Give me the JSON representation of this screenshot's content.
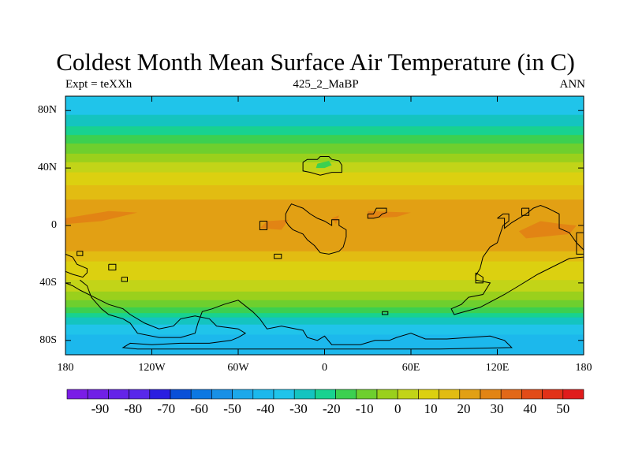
{
  "title": "Coldest Month Mean Surface Air Temperature (in C)",
  "subtitle": {
    "left": "Expt = teXXh",
    "center": "425_2_MaBP",
    "right": "ANN"
  },
  "axes": {
    "y_ticks": [
      {
        "lat": 80,
        "label": "80N"
      },
      {
        "lat": 40,
        "label": "40N"
      },
      {
        "lat": 0,
        "label": "0"
      },
      {
        "lat": -40,
        "label": "40S"
      },
      {
        "lat": -80,
        "label": "80S"
      }
    ],
    "x_ticks": [
      {
        "lon": -180,
        "label": "180"
      },
      {
        "lon": -120,
        "label": "120W"
      },
      {
        "lon": -60,
        "label": "60W"
      },
      {
        "lon": 0,
        "label": "0"
      },
      {
        "lon": 60,
        "label": "60E"
      },
      {
        "lon": 120,
        "label": "120E"
      },
      {
        "lon": 180,
        "label": "180"
      }
    ]
  },
  "colorbar": {
    "colors": [
      "#7a1ce6",
      "#7020e6",
      "#6424e8",
      "#5828ea",
      "#2a1ee0",
      "#0a50d8",
      "#0c78e2",
      "#1890e6",
      "#1ca8ea",
      "#1cb8ec",
      "#20c4ea",
      "#14c4c0",
      "#18d290",
      "#3cd050",
      "#6ecf2e",
      "#9ad01c",
      "#c2d418",
      "#dcd010",
      "#e2bc12",
      "#e2a014",
      "#e28414",
      "#e26818",
      "#e24c18",
      "#e23218",
      "#e01c1c"
    ],
    "labels": [
      {
        "value": -90,
        "text": "-90"
      },
      {
        "value": -80,
        "text": "-80"
      },
      {
        "value": -70,
        "text": "-70"
      },
      {
        "value": -60,
        "text": "-60"
      },
      {
        "value": -50,
        "text": "-50"
      },
      {
        "value": -40,
        "text": "-40"
      },
      {
        "value": -30,
        "text": "-30"
      },
      {
        "value": -20,
        "text": "-20"
      },
      {
        "value": -10,
        "text": "-10"
      },
      {
        "value": 0,
        "text": "0"
      },
      {
        "value": 10,
        "text": "10"
      },
      {
        "value": 20,
        "text": "20"
      },
      {
        "value": 30,
        "text": "30"
      },
      {
        "value": 40,
        "text": "40"
      },
      {
        "value": 50,
        "text": "50"
      }
    ]
  },
  "zones": [
    {
      "lat_top": 90,
      "lat_bottom": 77,
      "color": "#20c4ea"
    },
    {
      "lat_top": 77,
      "lat_bottom": 69,
      "color": "#14c4c0"
    },
    {
      "lat_top": 69,
      "lat_bottom": 63,
      "color": "#18d290"
    },
    {
      "lat_top": 63,
      "lat_bottom": 57,
      "color": "#3cd050"
    },
    {
      "lat_top": 57,
      "lat_bottom": 50,
      "color": "#6ecf2e"
    },
    {
      "lat_top": 50,
      "lat_bottom": 44,
      "color": "#9ad01c"
    },
    {
      "lat_top": 44,
      "lat_bottom": 37,
      "color": "#c2d418"
    },
    {
      "lat_top": 37,
      "lat_bottom": 28,
      "color": "#dcd010"
    },
    {
      "lat_top": 28,
      "lat_bottom": 18,
      "color": "#e2bc12"
    },
    {
      "lat_top": 18,
      "lat_bottom": -18,
      "color": "#e2a014"
    },
    {
      "lat_top": -18,
      "lat_bottom": -25,
      "color": "#e2bc12"
    },
    {
      "lat_top": -25,
      "lat_bottom": -38,
      "color": "#dcd010"
    },
    {
      "lat_top": -38,
      "lat_bottom": -46,
      "color": "#c2d418"
    },
    {
      "lat_top": -46,
      "lat_bottom": -52,
      "color": "#9ad01c"
    },
    {
      "lat_top": -52,
      "lat_bottom": -57,
      "color": "#6ecf2e"
    },
    {
      "lat_top": -57,
      "lat_bottom": -61,
      "color": "#3cd050"
    },
    {
      "lat_top": -61,
      "lat_bottom": -64,
      "color": "#18d290"
    },
    {
      "lat_top": -64,
      "lat_bottom": -69,
      "color": "#14c4c0"
    },
    {
      "lat_top": -69,
      "lat_bottom": -76,
      "color": "#20c4ea"
    },
    {
      "lat_top": -76,
      "lat_bottom": -90,
      "color": "#1cb8ec"
    }
  ],
  "hotspots": [
    {
      "name": "hotspot-west-pacific",
      "color": "#e28414",
      "points": [
        [
          -180,
          5
        ],
        [
          -150,
          10
        ],
        [
          -130,
          9
        ],
        [
          -155,
          3
        ],
        [
          -180,
          1
        ]
      ]
    },
    {
      "name": "hotspot-atlantic",
      "color": "#e28414",
      "points": [
        [
          -40,
          3
        ],
        [
          -25,
          4
        ],
        [
          -30,
          -3
        ],
        [
          -45,
          -2
        ]
      ]
    },
    {
      "name": "hotspot-north-africa",
      "color": "#e28414",
      "points": [
        [
          5,
          5
        ],
        [
          10,
          7
        ],
        [
          8,
          1
        ]
      ]
    },
    {
      "name": "hotspot-arabia",
      "color": "#e28414",
      "points": [
        [
          30,
          10
        ],
        [
          60,
          9
        ],
        [
          50,
          6
        ],
        [
          30,
          5
        ]
      ]
    },
    {
      "name": "hotspot-east-asia",
      "color": "#e28414",
      "points": [
        [
          135,
          -4
        ],
        [
          150,
          3
        ],
        [
          165,
          1
        ],
        [
          175,
          0
        ],
        [
          170,
          -6
        ],
        [
          140,
          -9
        ]
      ]
    },
    {
      "name": "cold-spot-north-continent",
      "color": "#3cd050",
      "points": [
        [
          -5,
          43
        ],
        [
          3,
          45
        ],
        [
          5,
          42
        ],
        [
          0,
          40
        ],
        [
          -6,
          40
        ]
      ]
    }
  ],
  "coastlines": [
    {
      "name": "coastline-north-island",
      "points": [
        [
          -15,
          44
        ],
        [
          -12,
          46
        ],
        [
          -5,
          46
        ],
        [
          -3,
          48
        ],
        [
          3,
          48
        ],
        [
          5,
          46
        ],
        [
          10,
          45
        ],
        [
          12,
          42
        ],
        [
          12,
          37
        ],
        [
          5,
          37
        ],
        [
          -3,
          35
        ],
        [
          -10,
          37
        ],
        [
          -15,
          38
        ],
        [
          -15,
          44
        ]
      ]
    },
    {
      "name": "coastline-african-block",
      "points": [
        [
          -25,
          12
        ],
        [
          -23,
          15
        ],
        [
          -15,
          12
        ],
        [
          -10,
          8
        ],
        [
          -5,
          5
        ],
        [
          0,
          3
        ],
        [
          5,
          0
        ],
        [
          5,
          4
        ],
        [
          10,
          4
        ],
        [
          10,
          0
        ],
        [
          15,
          -3
        ],
        [
          15,
          -8
        ],
        [
          13,
          -15
        ],
        [
          10,
          -18
        ],
        [
          3,
          -20
        ],
        [
          -3,
          -19
        ],
        [
          -7,
          -14
        ],
        [
          -12,
          -10
        ],
        [
          -15,
          -6
        ],
        [
          -22,
          -3
        ],
        [
          -25,
          0
        ],
        [
          -27,
          3
        ],
        [
          -27,
          8
        ],
        [
          -25,
          12
        ]
      ]
    },
    {
      "name": "coastline-arabian-block",
      "points": [
        [
          30,
          8
        ],
        [
          34,
          8
        ],
        [
          36,
          12
        ],
        [
          43,
          12
        ],
        [
          43,
          9
        ],
        [
          40,
          8
        ],
        [
          38,
          6
        ],
        [
          34,
          5
        ],
        [
          30,
          5
        ],
        [
          30,
          8
        ]
      ]
    },
    {
      "name": "coastline-east-landmass",
      "points": [
        [
          120,
          5
        ],
        [
          124,
          8
        ],
        [
          128,
          8
        ],
        [
          128,
          3
        ],
        [
          124,
          0
        ],
        [
          122,
          -6
        ],
        [
          120,
          -12
        ],
        [
          115,
          -15
        ],
        [
          110,
          -22
        ],
        [
          108,
          -30
        ],
        [
          105,
          -35
        ],
        [
          105,
          -38
        ],
        [
          115,
          -40
        ],
        [
          110,
          -48
        ],
        [
          100,
          -50
        ],
        [
          95,
          -55
        ],
        [
          88,
          -58
        ],
        [
          90,
          -62
        ],
        [
          108,
          -57
        ],
        [
          125,
          -48
        ],
        [
          135,
          -42
        ],
        [
          148,
          -34
        ],
        [
          170,
          -23
        ],
        [
          180,
          -22
        ],
        [
          180,
          -17
        ],
        [
          175,
          -12
        ],
        [
          170,
          -5
        ],
        [
          163,
          -2
        ],
        [
          163,
          8
        ],
        [
          155,
          12
        ],
        [
          150,
          14
        ],
        [
          145,
          12
        ],
        [
          140,
          8
        ],
        [
          130,
          2
        ],
        [
          125,
          -2
        ],
        [
          125,
          5
        ],
        [
          120,
          5
        ]
      ]
    },
    {
      "name": "coastline-small-east-island",
      "points": [
        [
          137,
          12
        ],
        [
          142,
          12
        ],
        [
          142,
          7
        ],
        [
          137,
          7
        ],
        [
          137,
          12
        ]
      ]
    },
    {
      "name": "coastline-east-peninsula",
      "points": [
        [
          105,
          -33
        ],
        [
          110,
          -36
        ],
        [
          110,
          -40
        ],
        [
          105,
          -40
        ],
        [
          105,
          -33
        ]
      ]
    },
    {
      "name": "coastline-southern-continent",
      "points": [
        [
          -170,
          -38
        ],
        [
          -165,
          -42
        ],
        [
          -162,
          -50
        ],
        [
          -155,
          -58
        ],
        [
          -150,
          -62
        ],
        [
          -140,
          -65
        ],
        [
          -135,
          -68
        ],
        [
          -130,
          -75
        ],
        [
          -115,
          -78
        ],
        [
          -100,
          -78
        ],
        [
          -90,
          -75
        ],
        [
          -88,
          -68
        ],
        [
          -85,
          -60
        ],
        [
          -78,
          -58
        ],
        [
          -70,
          -55
        ],
        [
          -60,
          -52
        ],
        [
          -50,
          -60
        ],
        [
          -45,
          -65
        ],
        [
          -40,
          -72
        ],
        [
          -30,
          -70
        ],
        [
          -20,
          -72
        ],
        [
          -15,
          -73
        ],
        [
          -12,
          -78
        ],
        [
          -5,
          -80
        ],
        [
          0,
          -77
        ],
        [
          5,
          -83
        ],
        [
          25,
          -83
        ],
        [
          35,
          -80
        ],
        [
          45,
          -80
        ],
        [
          50,
          -78
        ],
        [
          60,
          -75
        ],
        [
          70,
          -79
        ],
        [
          85,
          -79
        ],
        [
          100,
          -78
        ],
        [
          115,
          -77
        ],
        [
          125,
          -80
        ],
        [
          130,
          -85
        ],
        [
          80,
          -86
        ],
        [
          20,
          -86
        ],
        [
          -35,
          -86
        ],
        [
          -80,
          -86
        ],
        [
          -130,
          -86
        ],
        [
          -140,
          -85
        ],
        [
          -135,
          -82
        ],
        [
          -120,
          -83
        ],
        [
          -100,
          -82
        ],
        [
          -80,
          -82
        ],
        [
          -65,
          -80
        ],
        [
          -60,
          -78
        ],
        [
          -55,
          -75
        ],
        [
          -60,
          -72
        ],
        [
          -75,
          -70
        ],
        [
          -80,
          -65
        ],
        [
          -90,
          -63
        ],
        [
          -100,
          -65
        ],
        [
          -105,
          -70
        ],
        [
          -115,
          -72
        ],
        [
          -125,
          -68
        ],
        [
          -135,
          -62
        ],
        [
          -140,
          -58
        ],
        [
          -150,
          -55
        ],
        [
          -160,
          -50
        ],
        [
          -170,
          -45
        ],
        [
          -175,
          -42
        ],
        [
          -180,
          -40
        ]
      ]
    },
    {
      "name": "coastline-southwest-island",
      "points": [
        [
          -180,
          -20
        ],
        [
          -175,
          -22
        ],
        [
          -172,
          -27
        ],
        [
          -165,
          -30
        ],
        [
          -165,
          -33
        ],
        [
          -168,
          -36
        ],
        [
          -175,
          -34
        ],
        [
          -180,
          -32
        ]
      ]
    },
    {
      "name": "coastline-small-islet-a",
      "points": [
        [
          -172,
          -18
        ],
        [
          -168,
          -18
        ],
        [
          -168,
          -21
        ],
        [
          -172,
          -21
        ],
        [
          -172,
          -18
        ]
      ]
    },
    {
      "name": "coastline-small-islet-b",
      "points": [
        [
          -150,
          -27
        ],
        [
          -145,
          -27
        ],
        [
          -145,
          -31
        ],
        [
          -150,
          -31
        ],
        [
          -150,
          -27
        ]
      ]
    },
    {
      "name": "coastline-small-islet-c",
      "points": [
        [
          -141,
          -36
        ],
        [
          -137,
          -36
        ],
        [
          -137,
          -39
        ],
        [
          -141,
          -39
        ],
        [
          -141,
          -36
        ]
      ]
    },
    {
      "name": "coastline-small-islet-d",
      "points": [
        [
          -45,
          3
        ],
        [
          -40,
          3
        ],
        [
          -40,
          -3
        ],
        [
          -45,
          -3
        ],
        [
          -45,
          3
        ]
      ]
    },
    {
      "name": "coastline-small-islet-e",
      "points": [
        [
          -35,
          -20
        ],
        [
          -30,
          -20
        ],
        [
          -30,
          -23
        ],
        [
          -35,
          -23
        ],
        [
          -35,
          -20
        ]
      ]
    },
    {
      "name": "coastline-small-islet-f",
      "points": [
        [
          40,
          -60
        ],
        [
          44,
          -60
        ],
        [
          44,
          -62
        ],
        [
          40,
          -62
        ],
        [
          40,
          -60
        ]
      ]
    },
    {
      "name": "coastline-small-islet-g",
      "points": [
        [
          175,
          -5
        ],
        [
          180,
          -5
        ],
        [
          180,
          -20
        ],
        [
          175,
          -20
        ],
        [
          175,
          -5
        ]
      ]
    }
  ]
}
